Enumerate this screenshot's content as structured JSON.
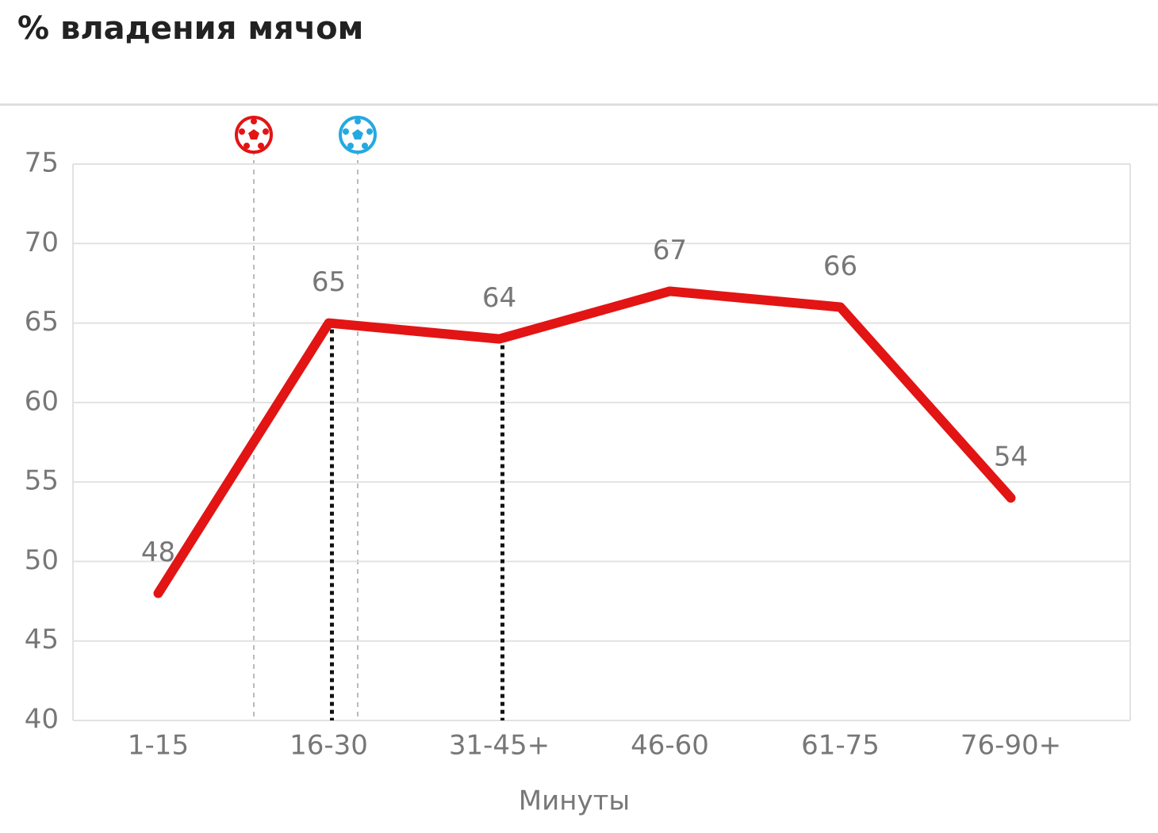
{
  "chart_data": {
    "type": "line",
    "title": "% владения мячом",
    "x_label": "Минуты",
    "categories": [
      "1-15",
      "16-30",
      "31-45+",
      "46-60",
      "61-75",
      "76-90+"
    ],
    "values": [
      48,
      65,
      64,
      67,
      66,
      54
    ],
    "color": "#e31414",
    "ylim": [
      40,
      75
    ],
    "yticks": [
      40,
      45,
      50,
      55,
      60,
      65,
      70,
      75
    ],
    "grid": true
  }
}
